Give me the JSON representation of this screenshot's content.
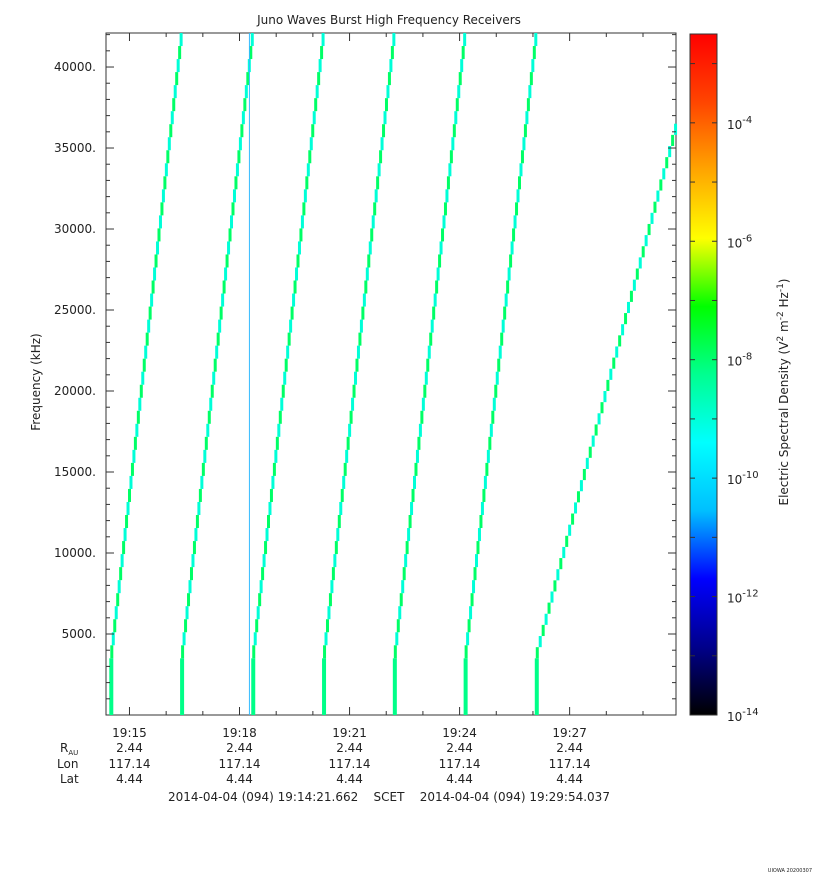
{
  "chart_data": {
    "type": "heatmap",
    "title": "Juno Waves Burst High Frequency Receivers",
    "ylabel": "Frequency (kHz)",
    "ylim": [
      0,
      42100
    ],
    "y_ticks": [
      5000,
      10000,
      15000,
      20000,
      25000,
      30000,
      35000,
      40000
    ],
    "y_tick_labels": [
      "5000.",
      "10000.",
      "15000.",
      "20000.",
      "25000.",
      "30000.",
      "35000.",
      "40000."
    ],
    "x_range_minutes": [
      1154.36,
      1169.9
    ],
    "x_ticks_minutes": [
      1155,
      1158,
      1161,
      1164,
      1167
    ],
    "x_tick_labels": [
      "19:15",
      "19:18",
      "19:21",
      "19:24",
      "19:27"
    ],
    "ephemeris_labels": {
      "rau_main": "R",
      "rau_sub": "AU",
      "lon": "Lon",
      "lat": "Lat"
    },
    "rau_values": [
      "2.44",
      "2.44",
      "2.44",
      "2.44",
      "2.44"
    ],
    "lon_values": [
      "117.14",
      "117.14",
      "117.14",
      "117.14",
      "117.14"
    ],
    "lat_values": [
      "4.44",
      "4.44",
      "4.44",
      "4.44",
      "4.44"
    ],
    "time_span_text": "2014-04-04 (094) 19:14:21.662    SCET    2014-04-04 (094) 19:29:54.037",
    "colorbar": {
      "label_main": "Electric Spectral Density (V",
      "label_sup1": "2",
      "label_mid": " m",
      "label_sup2": "-2",
      "label_mid2": " Hz",
      "label_sup3": "-1",
      "label_end": ")",
      "exponents": [
        "-14",
        "-12",
        "-10",
        "-8",
        "-6",
        "-4"
      ],
      "tick_base": "10",
      "log_range": [
        -14,
        -2.5
      ],
      "colors": [
        "#000000",
        "#00008b",
        "#0000ff",
        "#00bfff",
        "#00ffff",
        "#00ff90",
        "#00ff00",
        "#ffff00",
        "#ffa500",
        "#ff4500",
        "#ff0000"
      ]
    },
    "sweeps": [
      {
        "start_minute": 1154.45,
        "end_minute": 1156.38,
        "start_freq": 3500,
        "end_freq": 42100,
        "level_log": -9.0
      },
      {
        "start_minute": 1156.38,
        "end_minute": 1158.32,
        "start_freq": 3500,
        "end_freq": 42100,
        "level_log": -9.0
      },
      {
        "start_minute": 1158.32,
        "end_minute": 1160.25,
        "start_freq": 3500,
        "end_freq": 42100,
        "level_log": -9.0
      },
      {
        "start_minute": 1160.25,
        "end_minute": 1162.18,
        "start_freq": 3500,
        "end_freq": 42100,
        "level_log": -9.0
      },
      {
        "start_minute": 1162.18,
        "end_minute": 1164.11,
        "start_freq": 3500,
        "end_freq": 42100,
        "level_log": -9.0
      },
      {
        "start_minute": 1164.11,
        "end_minute": 1166.05,
        "start_freq": 3500,
        "end_freq": 42100,
        "level_log": -9.0
      },
      {
        "start_minute": 1166.05,
        "end_minute": 1169.9,
        "start_freq": 3500,
        "end_freq": 36500,
        "level_log": -9.0
      }
    ],
    "vertical_line_minute": 1158.27,
    "watermark": "UIOWA 20200307"
  }
}
